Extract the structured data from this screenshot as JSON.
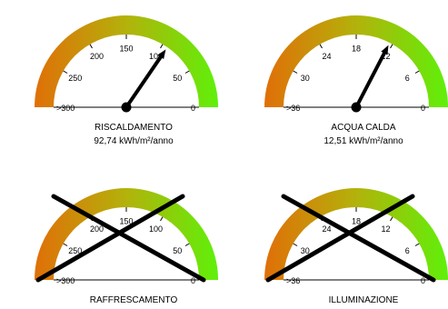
{
  "chart_data": [
    {
      "type": "gauge",
      "title": "RISCALDAMENTO",
      "value_label": "92,74 kWh/m²/anno",
      "value": 92.74,
      "ticks": [
        ">300",
        "250",
        "200",
        "150",
        "100",
        "50",
        "0"
      ],
      "tick_values": [
        300,
        250,
        200,
        150,
        100,
        50,
        0
      ],
      "crossed_out": false
    },
    {
      "type": "gauge",
      "title": "ACQUA CALDA",
      "value_label": "12,51 kWh/m²/anno",
      "value": 12.51,
      "ticks": [
        ">36",
        "30",
        "24",
        "18",
        "12",
        "6",
        "0"
      ],
      "tick_values": [
        36,
        30,
        24,
        18,
        12,
        6,
        0
      ],
      "crossed_out": false
    },
    {
      "type": "gauge",
      "title": "RAFFRESCAMENTO",
      "value_label": "",
      "value": null,
      "ticks": [
        ">300",
        "250",
        "200",
        "150",
        "100",
        "50",
        "0"
      ],
      "tick_values": [
        300,
        250,
        200,
        150,
        100,
        50,
        0
      ],
      "crossed_out": true
    },
    {
      "type": "gauge",
      "title": "ILLUMINAZIONE",
      "value_label": "",
      "value": null,
      "ticks": [
        ">36",
        "30",
        "24",
        "18",
        "12",
        "6",
        "0"
      ],
      "tick_values": [
        36,
        30,
        24,
        18,
        12,
        6,
        0
      ],
      "crossed_out": true
    }
  ],
  "colors": {
    "scale_start": "#e06f08",
    "scale_end": "#5ff00a",
    "needle": "#000000",
    "cross": "#000000"
  }
}
